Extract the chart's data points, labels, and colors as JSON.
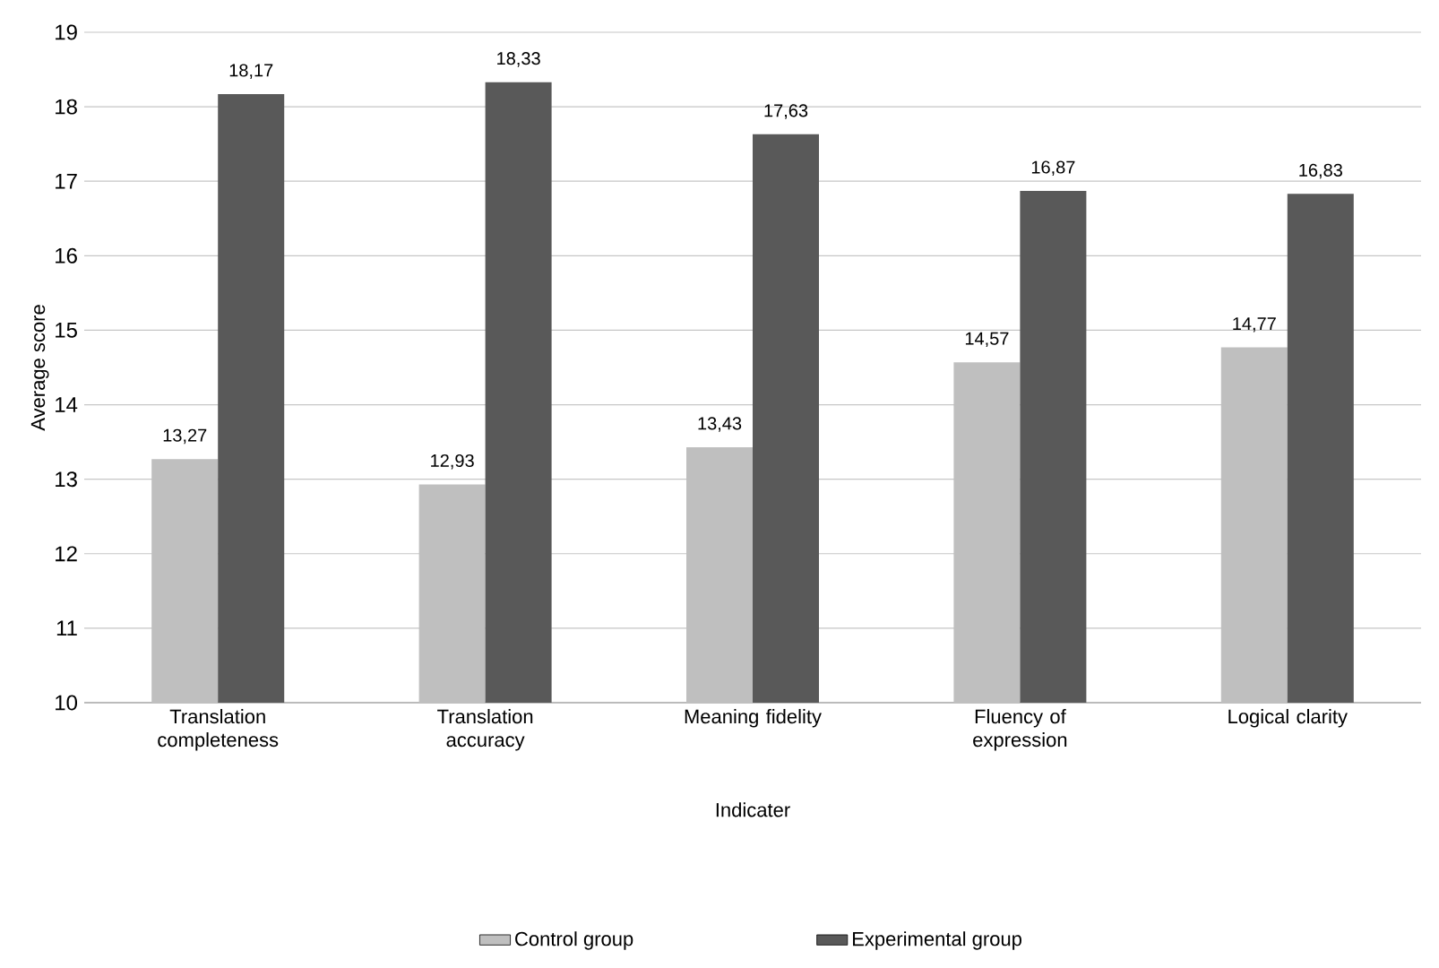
{
  "chart_data": {
    "type": "bar",
    "xlabel": "Indicater",
    "ylabel": "Average score",
    "categories": [
      "Translation completeness",
      "Translation accuracy",
      "Meaning fidelity",
      "Fluency of expression",
      "Logical clarity"
    ],
    "series": [
      {
        "name": "Control group",
        "color": "#bfbfbf",
        "values": [
          13.27,
          12.93,
          13.43,
          14.57,
          14.77
        ],
        "value_labels": [
          "13,27",
          "12,93",
          "13,43",
          "14,57",
          "14,77"
        ]
      },
      {
        "name": "Experimental group",
        "color": "#595959",
        "values": [
          18.17,
          18.33,
          17.63,
          16.87,
          16.83
        ],
        "value_labels": [
          "18,17",
          "18,33",
          "17,63",
          "16,87",
          "16,83"
        ]
      }
    ],
    "ylim": [
      10,
      19
    ],
    "yticks": [
      10,
      11,
      12,
      13,
      14,
      15,
      16,
      17,
      18,
      19
    ],
    "grid": "y",
    "legend": "bottom"
  }
}
